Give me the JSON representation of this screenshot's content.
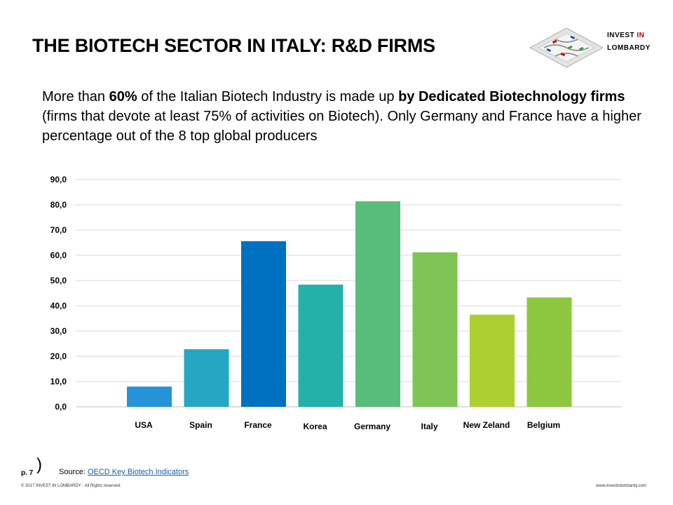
{
  "header": {
    "title": "THE BIOTECH SECTOR IN ITALY: R&D FIRMS",
    "brand_line1_a": "INVEST",
    "brand_line1_b": "IN",
    "brand_line2": "LOMBARDY"
  },
  "intro": {
    "part1": "More than ",
    "bold1": "60%",
    "part2": " of the Italian Biotech Industry is made up ",
    "bold2": "by Dedicated Biotechnology firms",
    "part3": " (firms that devote at least 75% of activities on Biotech). Only Germany and France have a higher percentage out of the 8 top global producers"
  },
  "chart_data": {
    "type": "bar",
    "title": "",
    "xlabel": "",
    "ylabel": "",
    "ylim": [
      0,
      90
    ],
    "yticks": [
      "0,0",
      "10,0",
      "20,0",
      "30,0",
      "40,0",
      "50,0",
      "60,0",
      "70,0",
      "80,0",
      "90,0"
    ],
    "grid": true,
    "categories": [
      "USA",
      "Spain",
      "France",
      "Korea",
      "Germany",
      "Italy",
      "New Zeland",
      "Belgium"
    ],
    "values": [
      8.0,
      22.8,
      65.6,
      48.4,
      81.4,
      61.2,
      36.5,
      43.3
    ],
    "colors": [
      "#2493d8",
      "#27a6c4",
      "#0070c0",
      "#22b2aa",
      "#58bd7a",
      "#7ec454",
      "#acd02f",
      "#8dc63f"
    ]
  },
  "footer": {
    "page": "p. 7",
    "paren": ")",
    "source_label": "Source: ",
    "source_link": "OECD Key Biotech Indicators",
    "copyright": "© 2017 INVEST IN LOMBARDY - All Rights reserved.",
    "website": "www.investinlombardy.com"
  }
}
